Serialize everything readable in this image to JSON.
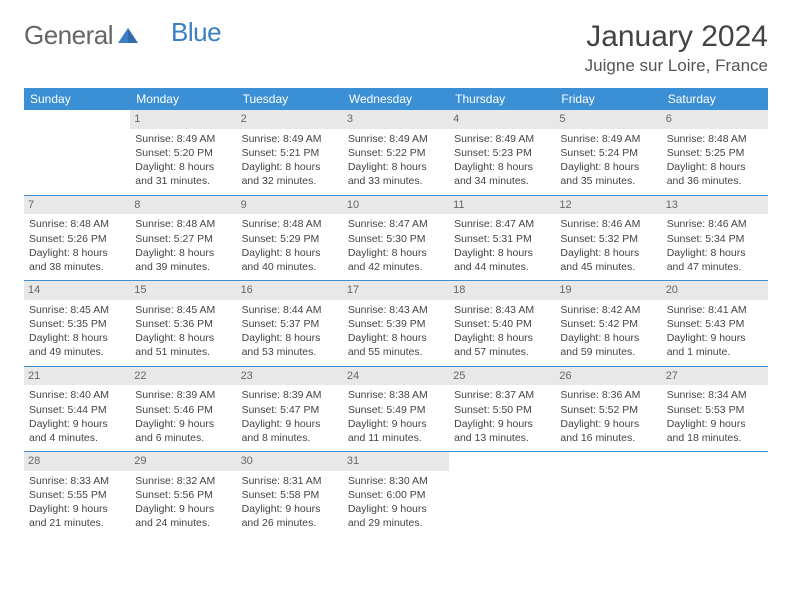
{
  "logo": {
    "part1": "General",
    "part2": "Blue"
  },
  "title": "January 2024",
  "location": "Juigne sur Loire, France",
  "colors": {
    "header_bg": "#3b8fd4",
    "daynum_bg": "#e8e8e8",
    "border": "#3b8fd4",
    "logo_blue": "#3b7fc4"
  },
  "weekdays": [
    "Sunday",
    "Monday",
    "Tuesday",
    "Wednesday",
    "Thursday",
    "Friday",
    "Saturday"
  ],
  "weeks": [
    [
      {
        "n": "",
        "sr": "",
        "ss": "",
        "d1": "",
        "d2": ""
      },
      {
        "n": "1",
        "sr": "Sunrise: 8:49 AM",
        "ss": "Sunset: 5:20 PM",
        "d1": "Daylight: 8 hours",
        "d2": "and 31 minutes."
      },
      {
        "n": "2",
        "sr": "Sunrise: 8:49 AM",
        "ss": "Sunset: 5:21 PM",
        "d1": "Daylight: 8 hours",
        "d2": "and 32 minutes."
      },
      {
        "n": "3",
        "sr": "Sunrise: 8:49 AM",
        "ss": "Sunset: 5:22 PM",
        "d1": "Daylight: 8 hours",
        "d2": "and 33 minutes."
      },
      {
        "n": "4",
        "sr": "Sunrise: 8:49 AM",
        "ss": "Sunset: 5:23 PM",
        "d1": "Daylight: 8 hours",
        "d2": "and 34 minutes."
      },
      {
        "n": "5",
        "sr": "Sunrise: 8:49 AM",
        "ss": "Sunset: 5:24 PM",
        "d1": "Daylight: 8 hours",
        "d2": "and 35 minutes."
      },
      {
        "n": "6",
        "sr": "Sunrise: 8:48 AM",
        "ss": "Sunset: 5:25 PM",
        "d1": "Daylight: 8 hours",
        "d2": "and 36 minutes."
      }
    ],
    [
      {
        "n": "7",
        "sr": "Sunrise: 8:48 AM",
        "ss": "Sunset: 5:26 PM",
        "d1": "Daylight: 8 hours",
        "d2": "and 38 minutes."
      },
      {
        "n": "8",
        "sr": "Sunrise: 8:48 AM",
        "ss": "Sunset: 5:27 PM",
        "d1": "Daylight: 8 hours",
        "d2": "and 39 minutes."
      },
      {
        "n": "9",
        "sr": "Sunrise: 8:48 AM",
        "ss": "Sunset: 5:29 PM",
        "d1": "Daylight: 8 hours",
        "d2": "and 40 minutes."
      },
      {
        "n": "10",
        "sr": "Sunrise: 8:47 AM",
        "ss": "Sunset: 5:30 PM",
        "d1": "Daylight: 8 hours",
        "d2": "and 42 minutes."
      },
      {
        "n": "11",
        "sr": "Sunrise: 8:47 AM",
        "ss": "Sunset: 5:31 PM",
        "d1": "Daylight: 8 hours",
        "d2": "and 44 minutes."
      },
      {
        "n": "12",
        "sr": "Sunrise: 8:46 AM",
        "ss": "Sunset: 5:32 PM",
        "d1": "Daylight: 8 hours",
        "d2": "and 45 minutes."
      },
      {
        "n": "13",
        "sr": "Sunrise: 8:46 AM",
        "ss": "Sunset: 5:34 PM",
        "d1": "Daylight: 8 hours",
        "d2": "and 47 minutes."
      }
    ],
    [
      {
        "n": "14",
        "sr": "Sunrise: 8:45 AM",
        "ss": "Sunset: 5:35 PM",
        "d1": "Daylight: 8 hours",
        "d2": "and 49 minutes."
      },
      {
        "n": "15",
        "sr": "Sunrise: 8:45 AM",
        "ss": "Sunset: 5:36 PM",
        "d1": "Daylight: 8 hours",
        "d2": "and 51 minutes."
      },
      {
        "n": "16",
        "sr": "Sunrise: 8:44 AM",
        "ss": "Sunset: 5:37 PM",
        "d1": "Daylight: 8 hours",
        "d2": "and 53 minutes."
      },
      {
        "n": "17",
        "sr": "Sunrise: 8:43 AM",
        "ss": "Sunset: 5:39 PM",
        "d1": "Daylight: 8 hours",
        "d2": "and 55 minutes."
      },
      {
        "n": "18",
        "sr": "Sunrise: 8:43 AM",
        "ss": "Sunset: 5:40 PM",
        "d1": "Daylight: 8 hours",
        "d2": "and 57 minutes."
      },
      {
        "n": "19",
        "sr": "Sunrise: 8:42 AM",
        "ss": "Sunset: 5:42 PM",
        "d1": "Daylight: 8 hours",
        "d2": "and 59 minutes."
      },
      {
        "n": "20",
        "sr": "Sunrise: 8:41 AM",
        "ss": "Sunset: 5:43 PM",
        "d1": "Daylight: 9 hours",
        "d2": "and 1 minute."
      }
    ],
    [
      {
        "n": "21",
        "sr": "Sunrise: 8:40 AM",
        "ss": "Sunset: 5:44 PM",
        "d1": "Daylight: 9 hours",
        "d2": "and 4 minutes."
      },
      {
        "n": "22",
        "sr": "Sunrise: 8:39 AM",
        "ss": "Sunset: 5:46 PM",
        "d1": "Daylight: 9 hours",
        "d2": "and 6 minutes."
      },
      {
        "n": "23",
        "sr": "Sunrise: 8:39 AM",
        "ss": "Sunset: 5:47 PM",
        "d1": "Daylight: 9 hours",
        "d2": "and 8 minutes."
      },
      {
        "n": "24",
        "sr": "Sunrise: 8:38 AM",
        "ss": "Sunset: 5:49 PM",
        "d1": "Daylight: 9 hours",
        "d2": "and 11 minutes."
      },
      {
        "n": "25",
        "sr": "Sunrise: 8:37 AM",
        "ss": "Sunset: 5:50 PM",
        "d1": "Daylight: 9 hours",
        "d2": "and 13 minutes."
      },
      {
        "n": "26",
        "sr": "Sunrise: 8:36 AM",
        "ss": "Sunset: 5:52 PM",
        "d1": "Daylight: 9 hours",
        "d2": "and 16 minutes."
      },
      {
        "n": "27",
        "sr": "Sunrise: 8:34 AM",
        "ss": "Sunset: 5:53 PM",
        "d1": "Daylight: 9 hours",
        "d2": "and 18 minutes."
      }
    ],
    [
      {
        "n": "28",
        "sr": "Sunrise: 8:33 AM",
        "ss": "Sunset: 5:55 PM",
        "d1": "Daylight: 9 hours",
        "d2": "and 21 minutes."
      },
      {
        "n": "29",
        "sr": "Sunrise: 8:32 AM",
        "ss": "Sunset: 5:56 PM",
        "d1": "Daylight: 9 hours",
        "d2": "and 24 minutes."
      },
      {
        "n": "30",
        "sr": "Sunrise: 8:31 AM",
        "ss": "Sunset: 5:58 PM",
        "d1": "Daylight: 9 hours",
        "d2": "and 26 minutes."
      },
      {
        "n": "31",
        "sr": "Sunrise: 8:30 AM",
        "ss": "Sunset: 6:00 PM",
        "d1": "Daylight: 9 hours",
        "d2": "and 29 minutes."
      },
      {
        "n": "",
        "sr": "",
        "ss": "",
        "d1": "",
        "d2": ""
      },
      {
        "n": "",
        "sr": "",
        "ss": "",
        "d1": "",
        "d2": ""
      },
      {
        "n": "",
        "sr": "",
        "ss": "",
        "d1": "",
        "d2": ""
      }
    ]
  ]
}
